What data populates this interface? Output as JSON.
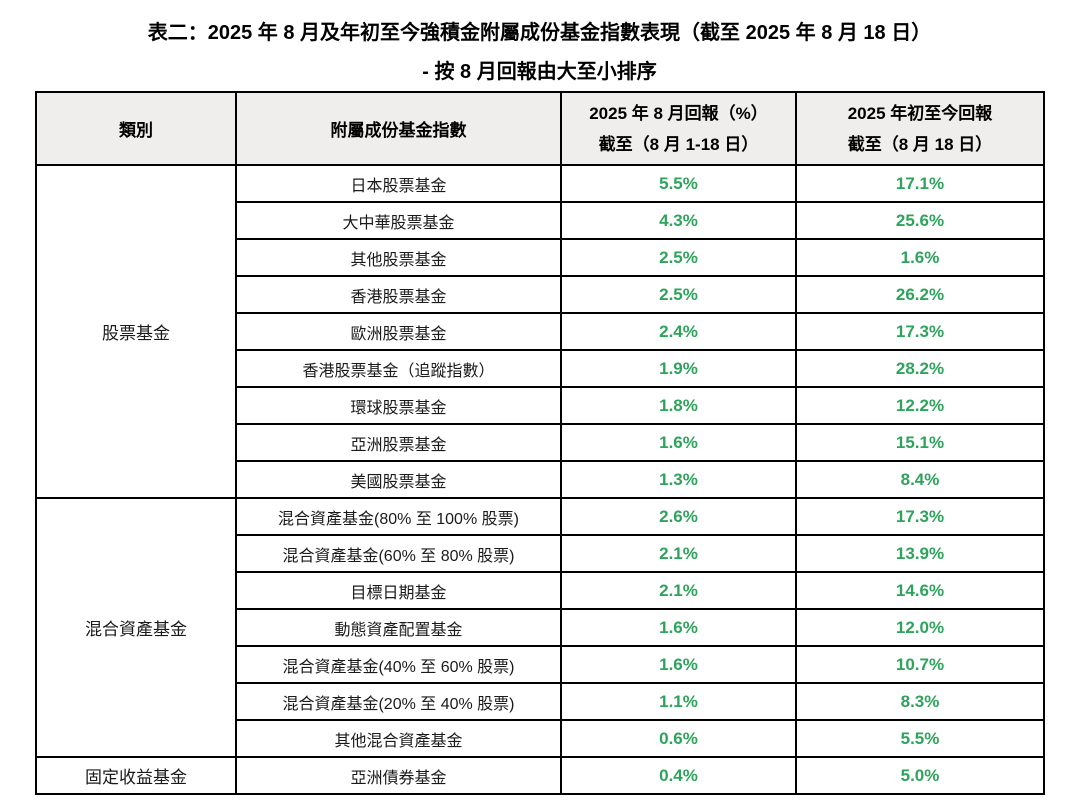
{
  "title": {
    "line1": "表二：2025 年 8 月及年初至今強積金附屬成份基金指數表現（截至 2025 年 8 月 18 日）",
    "line2": "- 按 8 月回報由大至小排序"
  },
  "colors": {
    "positive_return_green": "#2EA35C",
    "header_bg": "#F0EEEC",
    "border": "#000000",
    "text": "#1A1A1A"
  },
  "table": {
    "headers": {
      "category": "類別",
      "fund": "附屬成份基金指數",
      "aug_line1": "2025 年 8 月回報（%）",
      "aug_line2": "截至（8 月 1-18 日）",
      "ytd_line1": "2025 年初至今回報",
      "ytd_line2": "截至（8 月 18 日）"
    },
    "groups": [
      {
        "category": "股票基金",
        "rows": [
          {
            "fund": "日本股票基金",
            "aug": "5.5%",
            "ytd": "17.1%"
          },
          {
            "fund": "大中華股票基金",
            "aug": "4.3%",
            "ytd": "25.6%"
          },
          {
            "fund": "其他股票基金",
            "aug": "2.5%",
            "ytd": "1.6%"
          },
          {
            "fund": "香港股票基金",
            "aug": "2.5%",
            "ytd": "26.2%"
          },
          {
            "fund": "歐洲股票基金",
            "aug": "2.4%",
            "ytd": "17.3%"
          },
          {
            "fund": "香港股票基金（追蹤指數）",
            "aug": "1.9%",
            "ytd": "28.2%"
          },
          {
            "fund": "環球股票基金",
            "aug": "1.8%",
            "ytd": "12.2%"
          },
          {
            "fund": "亞洲股票基金",
            "aug": "1.6%",
            "ytd": "15.1%"
          },
          {
            "fund": "美國股票基金",
            "aug": "1.3%",
            "ytd": "8.4%"
          }
        ]
      },
      {
        "category": "混合資產基金",
        "rows": [
          {
            "fund": "混合資產基金(80% 至 100% 股票)",
            "aug": "2.6%",
            "ytd": "17.3%"
          },
          {
            "fund": "混合資產基金(60% 至 80% 股票)",
            "aug": "2.1%",
            "ytd": "13.9%"
          },
          {
            "fund": "目標日期基金",
            "aug": "2.1%",
            "ytd": "14.6%"
          },
          {
            "fund": "動態資產配置基金",
            "aug": "1.6%",
            "ytd": "12.0%"
          },
          {
            "fund": "混合資產基金(40% 至 60% 股票)",
            "aug": "1.6%",
            "ytd": "10.7%"
          },
          {
            "fund": "混合資產基金(20% 至 40% 股票)",
            "aug": "1.1%",
            "ytd": "8.3%"
          },
          {
            "fund": "其他混合資產基金",
            "aug": "0.6%",
            "ytd": "5.5%"
          }
        ]
      },
      {
        "category": "固定收益基金",
        "rows": [
          {
            "fund": "亞洲債券基金",
            "aug": "0.4%",
            "ytd": "5.0%"
          }
        ]
      }
    ]
  },
  "chart_data": {
    "type": "table",
    "title": "表二：2025 年 8 月及年初至今強積金附屬成份基金指數表現（截至 2025 年 8 月 18 日）",
    "subtitle": "- 按 8 月回報由大至小排序",
    "columns": [
      "類別",
      "附屬成份基金指數",
      "2025 年 8 月回報（%）截至（8 月 1-18 日）",
      "2025 年初至今回報 截至（8 月 18 日）"
    ],
    "rows": [
      [
        "股票基金",
        "日本股票基金",
        5.5,
        17.1
      ],
      [
        "股票基金",
        "大中華股票基金",
        4.3,
        25.6
      ],
      [
        "股票基金",
        "其他股票基金",
        2.5,
        1.6
      ],
      [
        "股票基金",
        "香港股票基金",
        2.5,
        26.2
      ],
      [
        "股票基金",
        "歐洲股票基金",
        2.4,
        17.3
      ],
      [
        "股票基金",
        "香港股票基金（追蹤指數）",
        1.9,
        28.2
      ],
      [
        "股票基金",
        "環球股票基金",
        1.8,
        12.2
      ],
      [
        "股票基金",
        "亞洲股票基金",
        1.6,
        15.1
      ],
      [
        "股票基金",
        "美國股票基金",
        1.3,
        8.4
      ],
      [
        "混合資產基金",
        "混合資產基金(80% 至 100% 股票)",
        2.6,
        17.3
      ],
      [
        "混合資產基金",
        "混合資產基金(60% 至 80% 股票)",
        2.1,
        13.9
      ],
      [
        "混合資產基金",
        "目標日期基金",
        2.1,
        14.6
      ],
      [
        "混合資產基金",
        "動態資產配置基金",
        1.6,
        12.0
      ],
      [
        "混合資產基金",
        "混合資產基金(40% 至 60% 股票)",
        1.6,
        10.7
      ],
      [
        "混合資產基金",
        "混合資產基金(20% 至 40% 股票)",
        1.1,
        8.3
      ],
      [
        "混合資產基金",
        "其他混合資產基金",
        0.6,
        5.5
      ],
      [
        "固定收益基金",
        "亞洲債券基金",
        0.4,
        5.0
      ]
    ]
  }
}
